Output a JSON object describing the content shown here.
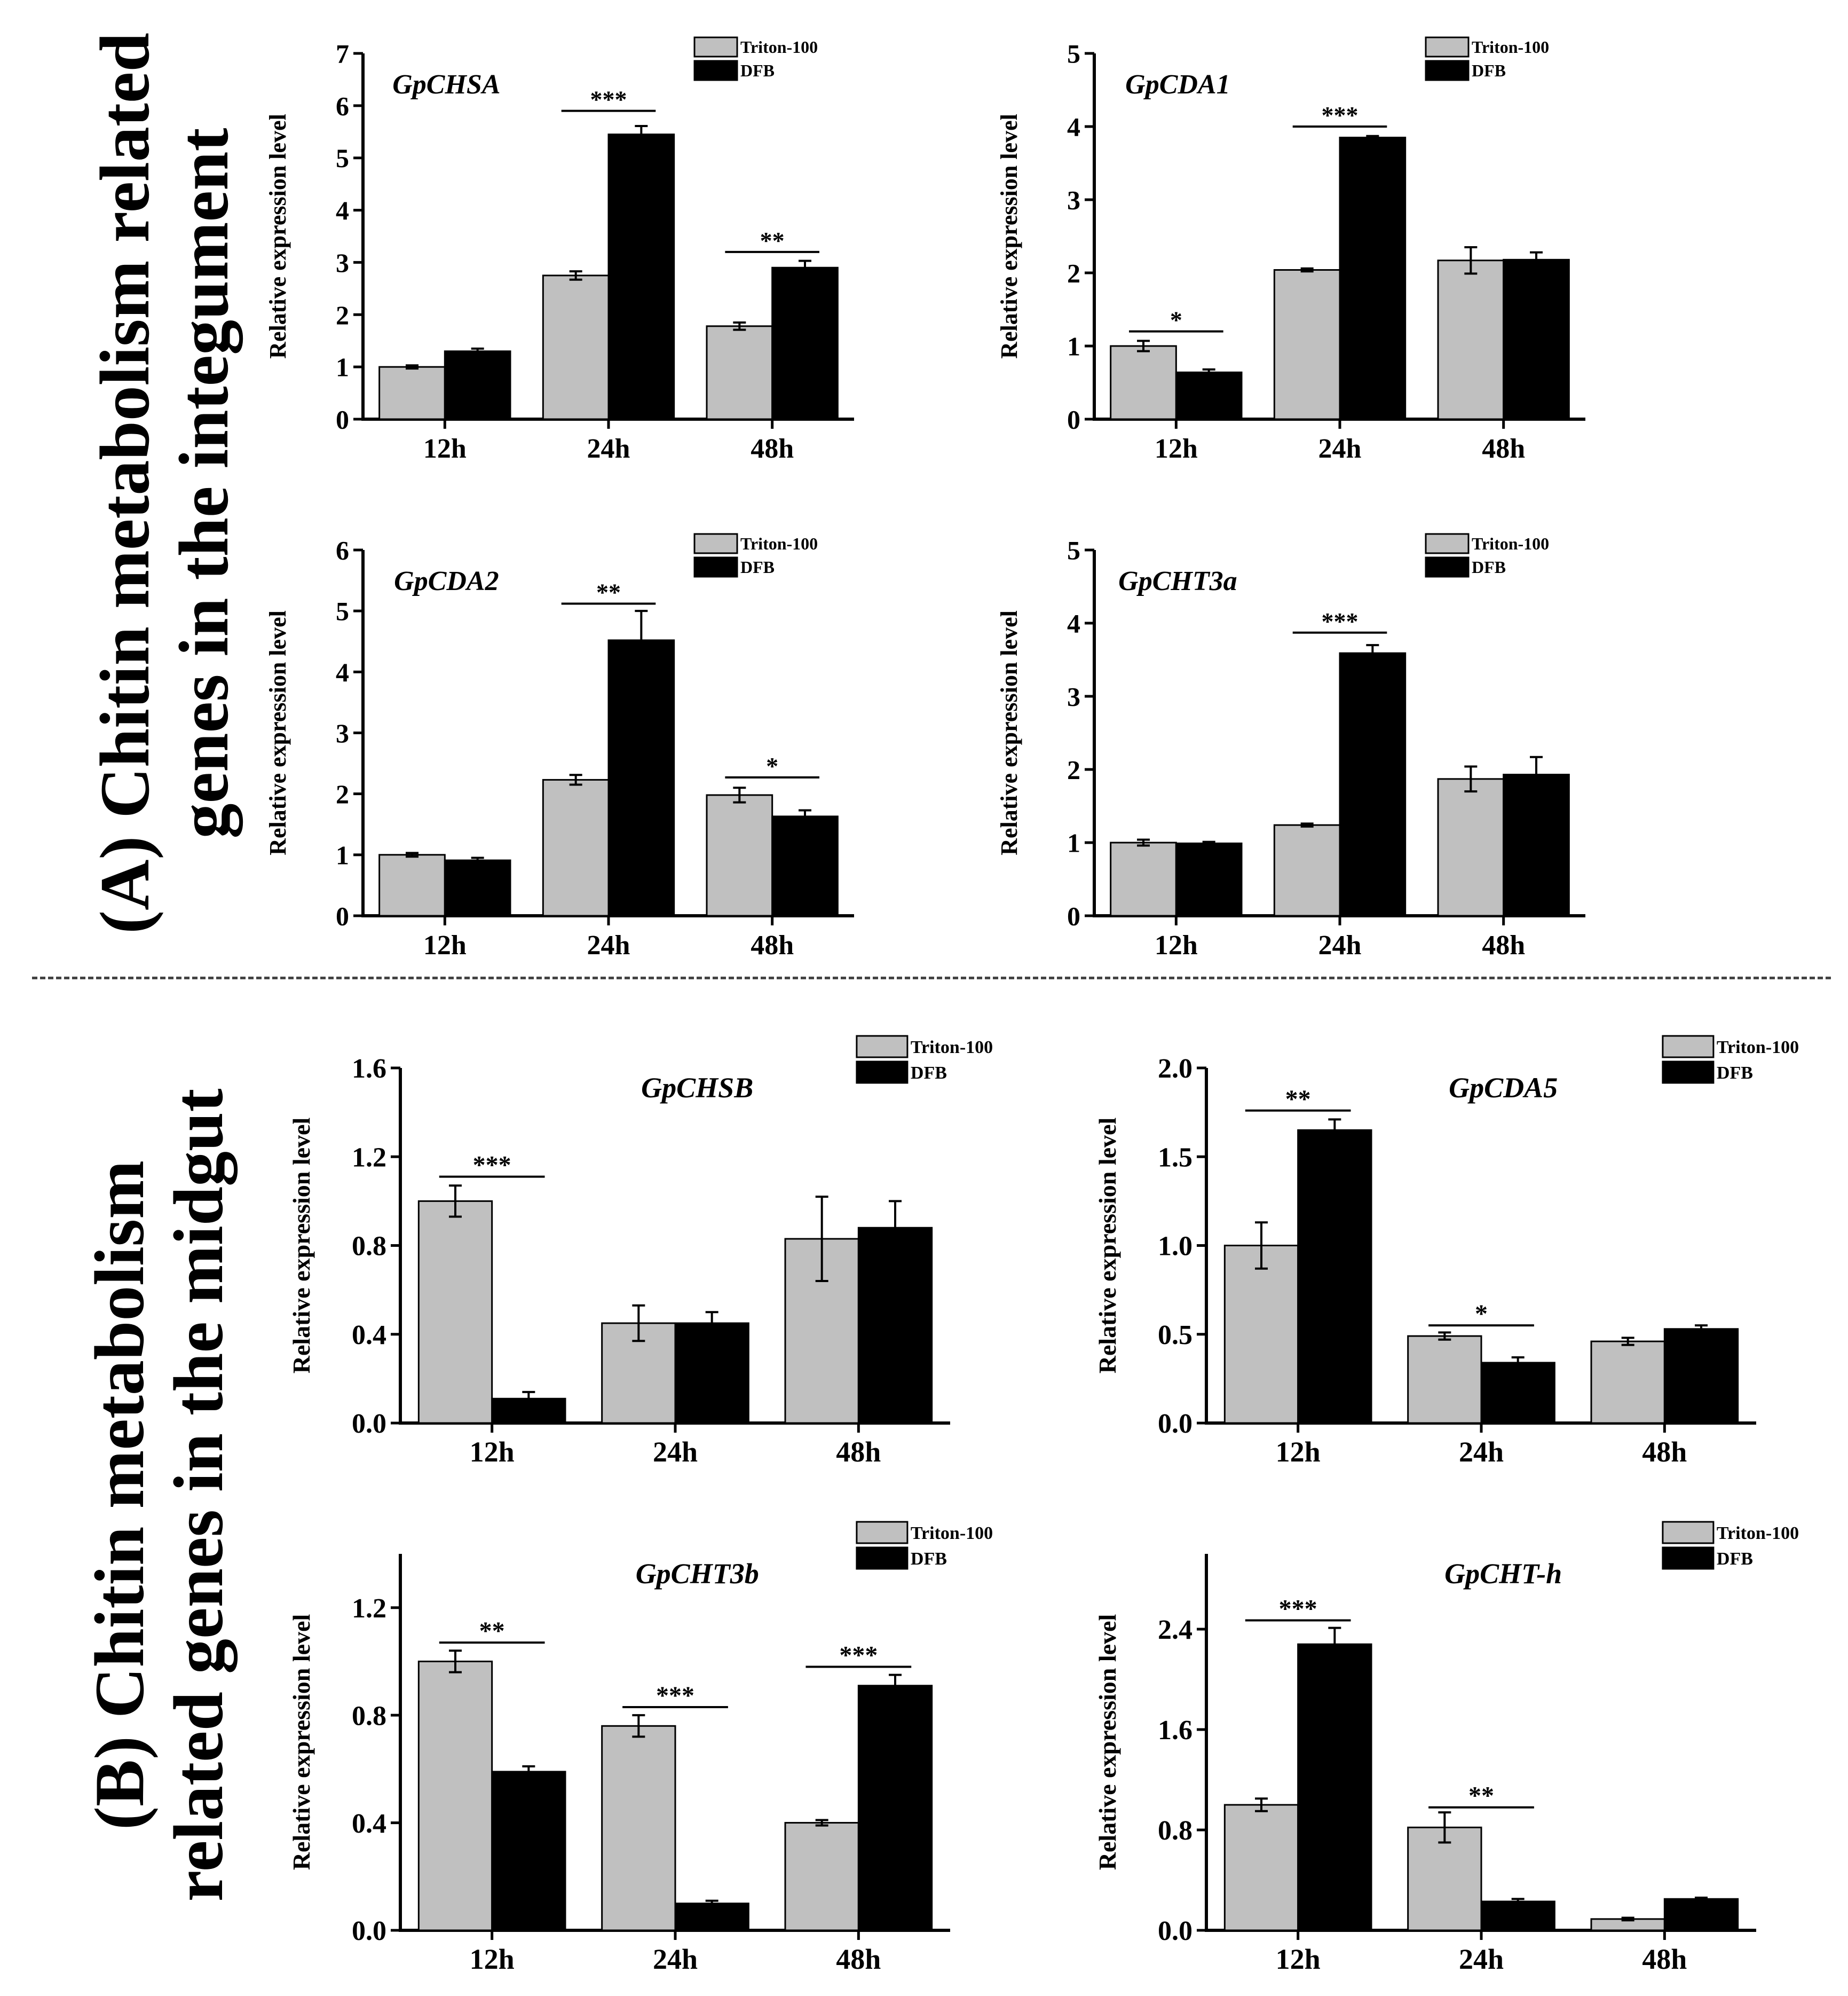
{
  "sections": {
    "a": {
      "line1": "(A) Chitin metabolism related",
      "line2": "genes in the integument"
    },
    "b": {
      "line1": "(B) Chitin metabolism",
      "line2": "related genes in the midgut"
    }
  },
  "colors": {
    "triton": "#c0c0c0",
    "dfb": "#000000"
  },
  "chart_data": [
    {
      "type": "bar",
      "id": "GpCHSA",
      "title": "GpCHSA",
      "categories": [
        "12h",
        "24h",
        "48h"
      ],
      "series": [
        {
          "name": "Triton-100",
          "values": [
            1.0,
            2.75,
            1.78
          ],
          "errors": [
            0.03,
            0.08,
            0.07
          ]
        },
        {
          "name": "DFB",
          "values": [
            1.3,
            5.45,
            2.9
          ],
          "errors": [
            0.05,
            0.16,
            0.13
          ]
        }
      ],
      "ylabel": "Relative expression level",
      "xlabel": "",
      "ylim": [
        0,
        7
      ],
      "yticks": [
        "0",
        "1",
        "2",
        "3",
        "4",
        "5",
        "6",
        "7"
      ],
      "significance": [
        {
          "category": 1,
          "label": "***",
          "level": 5.9
        },
        {
          "category": 2,
          "label": "**",
          "level": 3.2
        }
      ],
      "legend": "top-right"
    },
    {
      "type": "bar",
      "id": "GpCDA1",
      "title": "GpCDA1",
      "categories": [
        "12h",
        "24h",
        "48h"
      ],
      "series": [
        {
          "name": "Triton-100",
          "values": [
            1.0,
            2.04,
            2.17
          ],
          "errors": [
            0.07,
            0.02,
            0.18
          ]
        },
        {
          "name": "DFB",
          "values": [
            0.64,
            3.85,
            2.18
          ],
          "errors": [
            0.04,
            0.02,
            0.1
          ]
        }
      ],
      "ylabel": "Relative expression level",
      "xlabel": "",
      "ylim": [
        0,
        5
      ],
      "yticks": [
        "0",
        "1",
        "2",
        "3",
        "4",
        "5"
      ],
      "significance": [
        {
          "category": 0,
          "label": "*",
          "level": 1.2
        },
        {
          "category": 1,
          "label": "***",
          "level": 4.0
        }
      ],
      "legend": "top-right"
    },
    {
      "type": "bar",
      "id": "GpCDA2",
      "title": "GpCDA2",
      "categories": [
        "12h",
        "24h",
        "48h"
      ],
      "series": [
        {
          "name": "Triton-100",
          "values": [
            1.0,
            2.23,
            1.98
          ],
          "errors": [
            0.03,
            0.08,
            0.12
          ]
        },
        {
          "name": "DFB",
          "values": [
            0.91,
            4.52,
            1.63
          ],
          "errors": [
            0.04,
            0.48,
            0.1
          ]
        }
      ],
      "ylabel": "Relative expression level",
      "xlabel": "",
      "ylim": [
        0,
        6
      ],
      "yticks": [
        "0",
        "1",
        "2",
        "3",
        "4",
        "5",
        "6"
      ],
      "significance": [
        {
          "category": 1,
          "label": "**",
          "level": 5.12
        },
        {
          "category": 2,
          "label": "*",
          "level": 2.27
        }
      ],
      "legend": "top-right"
    },
    {
      "type": "bar",
      "id": "GpCHT3a",
      "title": "GpCHT3a",
      "categories": [
        "12h",
        "24h",
        "48h"
      ],
      "series": [
        {
          "name": "Triton-100",
          "values": [
            1.0,
            1.24,
            1.87
          ],
          "errors": [
            0.04,
            0.02,
            0.17
          ]
        },
        {
          "name": "DFB",
          "values": [
            0.99,
            3.59,
            1.93
          ],
          "errors": [
            0.02,
            0.11,
            0.24
          ]
        }
      ],
      "ylabel": "Relative expression level",
      "xlabel": "",
      "ylim": [
        0,
        5
      ],
      "yticks": [
        "0",
        "1",
        "2",
        "3",
        "4",
        "5"
      ],
      "significance": [
        {
          "category": 1,
          "label": "***",
          "level": 3.87
        }
      ],
      "legend": "top-right"
    },
    {
      "type": "bar",
      "id": "GpCHSB",
      "title": "GpCHSB",
      "categories": [
        "12h",
        "24h",
        "48h"
      ],
      "series": [
        {
          "name": "Triton-100",
          "values": [
            1.0,
            0.45,
            0.83
          ],
          "errors": [
            0.07,
            0.08,
            0.19
          ]
        },
        {
          "name": "DFB",
          "values": [
            0.11,
            0.45,
            0.88
          ],
          "errors": [
            0.03,
            0.05,
            0.12
          ]
        }
      ],
      "ylabel": "Relative expression level",
      "xlabel": "",
      "ylim": [
        0,
        1.6
      ],
      "yticks": [
        "0.0",
        "0.4",
        "0.8",
        "1.2",
        "1.6"
      ],
      "significance": [
        {
          "category": 0,
          "label": "***",
          "level": 1.11
        }
      ],
      "legend": "top-right"
    },
    {
      "type": "bar",
      "id": "GpCDA5",
      "title": "GpCDA5",
      "categories": [
        "12h",
        "24h",
        "48h"
      ],
      "series": [
        {
          "name": "Triton-100",
          "values": [
            1.0,
            0.49,
            0.46
          ],
          "errors": [
            0.13,
            0.02,
            0.02
          ]
        },
        {
          "name": "DFB",
          "values": [
            1.65,
            0.34,
            0.53
          ],
          "errors": [
            0.06,
            0.03,
            0.02
          ]
        }
      ],
      "ylabel": "Relative expression level",
      "xlabel": "",
      "ylim": [
        0,
        2.0
      ],
      "yticks": [
        "0.0",
        "0.5",
        "1.0",
        "1.5",
        "2.0"
      ],
      "significance": [
        {
          "category": 0,
          "label": "**",
          "level": 1.76
        },
        {
          "category": 1,
          "label": "*",
          "level": 0.55
        }
      ],
      "legend": "top-right"
    },
    {
      "type": "bar",
      "id": "GpCHT3b",
      "title": "GpCHT3b",
      "categories": [
        "12h",
        "24h",
        "48h"
      ],
      "series": [
        {
          "name": "Triton-100",
          "values": [
            1.0,
            0.76,
            0.4
          ],
          "errors": [
            0.04,
            0.04,
            0.01
          ]
        },
        {
          "name": "DFB",
          "values": [
            0.59,
            0.1,
            0.91
          ],
          "errors": [
            0.02,
            0.01,
            0.04
          ]
        }
      ],
      "ylabel": "Relative expression level",
      "xlabel": "",
      "ylim": [
        0,
        1.4
      ],
      "yticks": [
        "0.0",
        "0.4",
        "0.8",
        "1.2"
      ],
      "significance": [
        {
          "category": 0,
          "label": "**",
          "level": 1.07
        },
        {
          "category": 1,
          "label": "***",
          "level": 0.83
        },
        {
          "category": 2,
          "label": "***",
          "level": 0.98
        }
      ],
      "legend": "top-right"
    },
    {
      "type": "bar",
      "id": "GpCHT-h",
      "title": "GpCHT-h",
      "categories": [
        "12h",
        "24h",
        "48h"
      ],
      "series": [
        {
          "name": "Triton-100",
          "values": [
            1.0,
            0.82,
            0.09
          ],
          "errors": [
            0.05,
            0.12,
            0.01
          ]
        },
        {
          "name": "DFB",
          "values": [
            2.28,
            0.23,
            0.25
          ],
          "errors": [
            0.13,
            0.02,
            0.01
          ]
        }
      ],
      "ylabel": "Relative expression level",
      "xlabel": "",
      "ylim": [
        0,
        3.0
      ],
      "yticks": [
        "0.0",
        "0.8",
        "1.6",
        "2.4"
      ],
      "significance": [
        {
          "category": 0,
          "label": "***",
          "level": 2.47
        },
        {
          "category": 1,
          "label": "**",
          "level": 0.98
        }
      ],
      "legend": "top-right"
    }
  ]
}
